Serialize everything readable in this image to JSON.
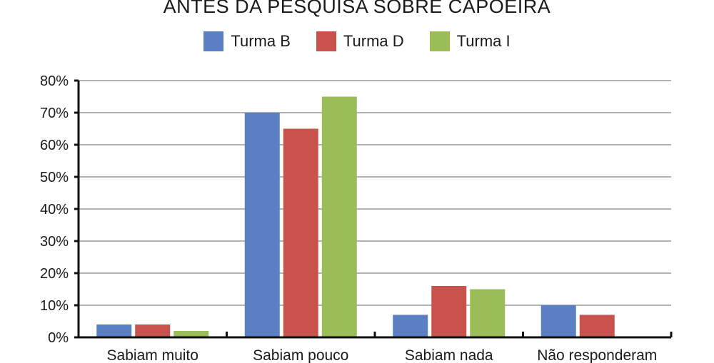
{
  "chart_data": {
    "type": "bar",
    "title": "ANTES DA PESQUISA SOBRE CAPOEIRA",
    "categories": [
      "Sabiam muito",
      "Sabiam pouco",
      "Sabiam nada",
      "Não responderam"
    ],
    "series": [
      {
        "name": "Turma B",
        "color": "#5a7fc2",
        "values": [
          4,
          70,
          7,
          10
        ]
      },
      {
        "name": "Turma D",
        "color": "#c9524d",
        "values": [
          4,
          65,
          16,
          7
        ]
      },
      {
        "name": "Turma I",
        "color": "#9bbd57",
        "values": [
          2,
          75,
          15,
          0
        ]
      }
    ],
    "yticks": [
      "0%",
      "10%",
      "20%",
      "30%",
      "40%",
      "50%",
      "60%",
      "70%",
      "80%"
    ],
    "ylim": [
      0,
      80
    ],
    "grid": true,
    "legend": "top-center",
    "xlabel": "",
    "ylabel": ""
  }
}
